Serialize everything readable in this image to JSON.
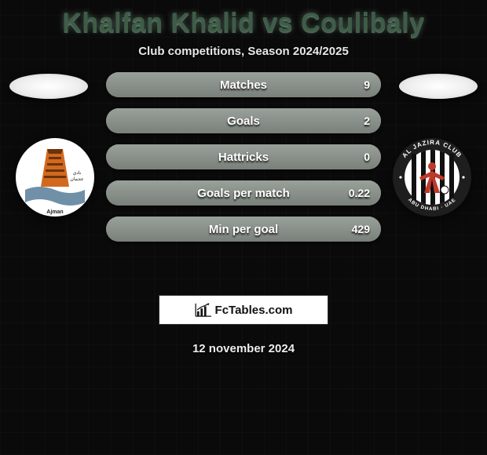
{
  "title": "Khalfan Khalid vs Coulibaly",
  "subtitle": "Club competitions, Season 2024/2025",
  "date": "12 november 2024",
  "brand": "FcTables.com",
  "colors": {
    "title": "#3e5c48",
    "text_light": "#e8e8e8",
    "pill_base_top": "#6f706e",
    "pill_base_bot": "#5b5c5a",
    "pill_fill_top": "#9aa09a",
    "pill_fill_bot": "#7a807a",
    "brand_box_bg": "#ffffff"
  },
  "left_team": {
    "name": "Ajman",
    "badge": {
      "bg": "#ffffff",
      "tower": "#d2691e",
      "tower_dark": "#6b330b",
      "wave": "#7090a8"
    }
  },
  "right_team": {
    "name": "Al Jazira Club",
    "badge": {
      "ring": "#1e1e1e",
      "ring_text": "#ffffff",
      "inner_bg": "#ffffff",
      "stripe": "#111111",
      "ball": "#c0392b",
      "top_text": "AL JAZIRA CLUB",
      "bottom_text": "ABU DHABI · UAE"
    }
  },
  "rows": [
    {
      "label": "Matches",
      "left": "",
      "right": "9",
      "fill_pct": 100
    },
    {
      "label": "Goals",
      "left": "",
      "right": "2",
      "fill_pct": 100
    },
    {
      "label": "Hattricks",
      "left": "",
      "right": "0",
      "fill_pct": 100
    },
    {
      "label": "Goals per match",
      "left": "",
      "right": "0.22",
      "fill_pct": 100
    },
    {
      "label": "Min per goal",
      "left": "",
      "right": "429",
      "fill_pct": 100
    }
  ]
}
